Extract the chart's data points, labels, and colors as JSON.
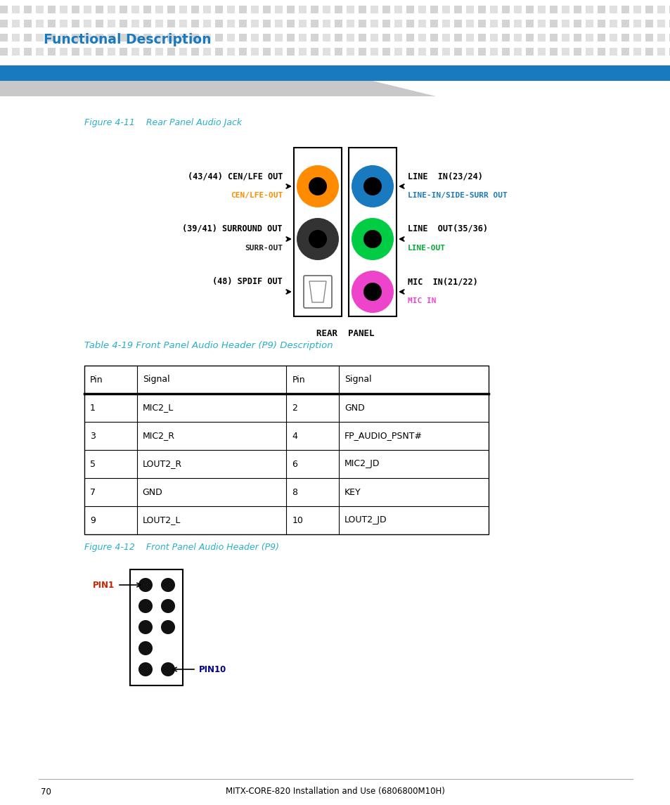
{
  "page_title": "Functional Description",
  "page_title_color": "#1a7abf",
  "header_bar_color": "#1a7abf",
  "background_color": "#ffffff",
  "fig411_caption": "Figure 4-11    Rear Panel Audio Jack",
  "fig412_caption": "Figure 4-12    Front Panel Audio Header (P9)",
  "table_caption": "Table 4-19 Front Panel Audio Header (P9) Description",
  "caption_color": "#29b0cc",
  "footer_text": "70",
  "footer_right": "MITX-CORE-820 Installation and Use (6806800M10H)",
  "table_headers": [
    "Pin",
    "Signal",
    "Pin",
    "Signal"
  ],
  "table_rows": [
    [
      "1",
      "MIC2_L",
      "2",
      "GND"
    ],
    [
      "3",
      "MIC2_R",
      "4",
      "FP_AUDIO_PSNT#"
    ],
    [
      "5",
      "LOUT2_R",
      "6",
      "MIC2_JD"
    ],
    [
      "7",
      "GND",
      "8",
      "KEY"
    ],
    [
      "9",
      "LOUT2_L",
      "10",
      "LOUT2_JD"
    ]
  ]
}
